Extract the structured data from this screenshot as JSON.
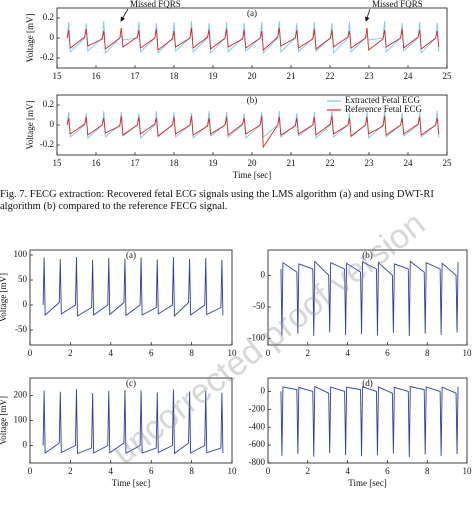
{
  "chart_data": [
    {
      "type": "line",
      "title": "(a)",
      "ylabel": "Voltage [mV]",
      "xlim": [
        15,
        25
      ],
      "ylim": [
        -0.3,
        0.3
      ],
      "xticks": [
        15,
        16,
        17,
        18,
        19,
        20,
        21,
        22,
        23,
        24,
        25
      ],
      "yticks": [
        -0.2,
        0,
        0.2
      ],
      "annotations": [
        "Missed FQRS",
        "Missed FQRS"
      ],
      "x": [
        15.26,
        15.3,
        15.34,
        15.71,
        15.75,
        15.79,
        16.16,
        16.2,
        16.24,
        16.61,
        16.65,
        16.69,
        17.06,
        17.1,
        17.14,
        17.51,
        17.55,
        17.59,
        17.96,
        18.0,
        18.04,
        18.41,
        18.45,
        18.49,
        18.86,
        18.9,
        18.94,
        19.31,
        19.35,
        19.39,
        19.76,
        19.8,
        19.84,
        20.21,
        20.25,
        20.29,
        20.66,
        20.7,
        20.74,
        21.11,
        21.15,
        21.19,
        21.56,
        21.6,
        21.64,
        22.01,
        22.05,
        22.09,
        22.46,
        22.5,
        22.54,
        22.91,
        22.95,
        22.99,
        23.36,
        23.4,
        23.44,
        23.81,
        23.85,
        23.89,
        24.26,
        24.3,
        24.34,
        24.71,
        24.75,
        24.79
      ],
      "series": [
        {
          "color": "#7ec8e3",
          "values": [
            0,
            0.16,
            -0.14,
            0,
            0.15,
            -0.13,
            0,
            0.17,
            -0.15,
            0,
            0.02,
            -0.02,
            0,
            0.16,
            -0.14,
            0,
            0.15,
            -0.15,
            0,
            0.16,
            -0.13,
            0,
            0.17,
            -0.14,
            0,
            0.15,
            -0.15,
            0,
            0.16,
            -0.14,
            0,
            0.15,
            -0.13,
            0,
            0.16,
            -0.15,
            0,
            0.17,
            -0.14,
            0,
            0.15,
            -0.14,
            0,
            0.16,
            -0.13,
            0,
            0.15,
            -0.15,
            0,
            0.16,
            -0.14,
            0,
            0.02,
            -0.02,
            0,
            0.17,
            -0.14,
            0,
            0.15,
            -0.13,
            0,
            0.16,
            -0.15,
            0,
            0.15,
            -0.14
          ]
        },
        {
          "color": "#d62728",
          "values": [
            0,
            0.08,
            -0.1,
            0.01,
            0.09,
            -0.08,
            -0.01,
            0.07,
            -0.11,
            0,
            0.1,
            -0.09,
            0.01,
            0.08,
            -0.1,
            0,
            0.09,
            -0.12,
            -0.01,
            0.07,
            -0.09,
            0,
            0.1,
            -0.1,
            0.01,
            0.08,
            -0.11,
            0,
            0.09,
            -0.09,
            -0.01,
            0.08,
            -0.1,
            0,
            0.07,
            -0.12,
            0.01,
            0.1,
            -0.08,
            0,
            0.08,
            -0.1,
            -0.01,
            0.09,
            -0.11,
            0,
            0.08,
            -0.09,
            0.01,
            0.07,
            -0.1,
            0,
            0.1,
            -0.12,
            -0.01,
            0.08,
            -0.09,
            0,
            0.09,
            -0.1,
            0.01,
            0.08,
            -0.11,
            0,
            0.07,
            -0.09
          ]
        }
      ]
    },
    {
      "type": "line",
      "title": "(b)",
      "ylabel": "Voltage [mV]",
      "xlabel": "Time [sec]",
      "xlim": [
        15,
        25
      ],
      "ylim": [
        -0.3,
        0.3
      ],
      "xticks": [
        15,
        16,
        17,
        18,
        19,
        20,
        21,
        22,
        23,
        24,
        25
      ],
      "yticks": [
        -0.2,
        0,
        0.2
      ],
      "legend": "upper right",
      "x": [
        15.26,
        15.3,
        15.34,
        15.71,
        15.75,
        15.79,
        16.16,
        16.2,
        16.24,
        16.61,
        16.65,
        16.69,
        17.06,
        17.1,
        17.14,
        17.51,
        17.55,
        17.59,
        17.96,
        18.0,
        18.04,
        18.41,
        18.45,
        18.49,
        18.86,
        18.9,
        18.94,
        19.31,
        19.35,
        19.39,
        19.76,
        19.8,
        19.84,
        20.21,
        20.25,
        20.29,
        20.66,
        20.7,
        20.74,
        21.11,
        21.15,
        21.19,
        21.56,
        21.6,
        21.64,
        22.01,
        22.05,
        22.09,
        22.46,
        22.5,
        22.54,
        22.91,
        22.95,
        22.99,
        23.36,
        23.4,
        23.44,
        23.81,
        23.85,
        23.89,
        24.26,
        24.3,
        24.34,
        24.71,
        24.75,
        24.79
      ],
      "series": [
        {
          "name": "Extracted Fetal ECG",
          "color": "#7ec8e3",
          "values": [
            0,
            0.13,
            -0.12,
            0,
            0.12,
            -0.13,
            0,
            0.14,
            -0.12,
            0,
            0.13,
            -0.11,
            0,
            0.12,
            -0.13,
            0,
            0.14,
            -0.12,
            0,
            0.13,
            -0.12,
            0,
            0.12,
            -0.13,
            0,
            0.14,
            -0.11,
            0,
            0.13,
            -0.12,
            0,
            0.12,
            -0.13,
            0,
            0.13,
            -0.12,
            0,
            0.14,
            -0.12,
            0,
            0.12,
            -0.11,
            0,
            0.13,
            -0.13,
            0,
            0.14,
            -0.12,
            0,
            0.12,
            -0.12,
            0,
            0.13,
            -0.13,
            0,
            0.14,
            -0.12,
            0,
            0.12,
            -0.11,
            0,
            0.13,
            -0.12,
            0,
            0.14,
            -0.13
          ]
        },
        {
          "name": "Reference Fetal ECG",
          "color": "#d62728",
          "values": [
            0,
            0.07,
            -0.09,
            0.01,
            0.08,
            -0.1,
            0,
            0.07,
            -0.08,
            -0.01,
            0.09,
            -0.1,
            0,
            0.08,
            -0.09,
            0.01,
            0.07,
            -0.11,
            0,
            0.08,
            -0.09,
            0,
            0.09,
            -0.1,
            -0.01,
            0.07,
            -0.09,
            0,
            0.08,
            -0.1,
            0.01,
            0.07,
            -0.09,
            0,
            0.09,
            -0.22,
            0,
            0.08,
            -0.1,
            -0.01,
            0.07,
            -0.09,
            0,
            0.08,
            -0.1,
            0.01,
            0.09,
            -0.09,
            0,
            0.07,
            -0.11,
            0,
            0.08,
            -0.09,
            -0.01,
            0.09,
            -0.1,
            0,
            0.07,
            -0.09,
            0.01,
            0.08,
            -0.1,
            0,
            0.07,
            -0.09
          ]
        }
      ]
    },
    {
      "type": "line",
      "title": "(a)",
      "ylabel": "Voltage [mV]",
      "xlim": [
        0,
        10
      ],
      "ylim": [
        -80,
        110
      ],
      "xticks": [
        0,
        2,
        4,
        6,
        8,
        10
      ],
      "yticks": [
        -50,
        0,
        50,
        100
      ],
      "x": [
        0.65,
        0.7,
        0.75,
        1.45,
        1.5,
        1.55,
        2.25,
        2.3,
        2.35,
        3.05,
        3.1,
        3.15,
        3.85,
        3.9,
        3.95,
        4.65,
        4.7,
        4.75,
        5.45,
        5.5,
        5.55,
        6.25,
        6.3,
        6.35,
        7.05,
        7.1,
        7.15,
        7.85,
        7.9,
        7.95,
        8.65,
        8.7,
        8.75,
        9.45,
        9.5,
        9.55
      ],
      "series": [
        {
          "color": "#2f3f9e",
          "values": [
            0,
            95,
            -20,
            5,
            92,
            -18,
            0,
            96,
            -22,
            -5,
            90,
            -20,
            0,
            94,
            -19,
            5,
            93,
            -21,
            0,
            95,
            -20,
            -5,
            91,
            -18,
            0,
            96,
            -22,
            5,
            92,
            -20,
            0,
            94,
            -19,
            -5,
            90,
            -21
          ]
        }
      ]
    },
    {
      "type": "line",
      "title": "(b)",
      "xlim": [
        0,
        10
      ],
      "ylim": [
        -110,
        40
      ],
      "xticks": [
        0,
        2,
        4,
        6,
        8,
        10
      ],
      "yticks": [
        -100,
        -50,
        0
      ],
      "x": [
        0.65,
        0.7,
        0.75,
        1.45,
        1.5,
        1.55,
        2.25,
        2.3,
        2.35,
        3.05,
        3.1,
        3.15,
        3.85,
        3.9,
        3.95,
        4.65,
        4.7,
        4.75,
        5.45,
        5.5,
        5.55,
        6.25,
        6.3,
        6.35,
        7.05,
        7.1,
        7.15,
        7.85,
        7.9,
        7.95,
        8.65,
        8.7,
        8.75,
        9.45,
        9.5,
        9.55
      ],
      "series": [
        {
          "color": "#2f3f9e",
          "values": [
            10,
            -95,
            20,
            5,
            -92,
            18,
            10,
            -96,
            22,
            0,
            -90,
            20,
            10,
            -94,
            19,
            5,
            -93,
            21,
            10,
            -95,
            20,
            0,
            -91,
            18,
            10,
            -96,
            22,
            5,
            -92,
            20,
            10,
            -94,
            19,
            0,
            -90,
            21
          ]
        }
      ]
    },
    {
      "type": "line",
      "title": "(c)",
      "ylabel": "Voltage [mV]",
      "xlabel": "Time [sec]",
      "xlim": [
        0,
        10
      ],
      "ylim": [
        -70,
        270
      ],
      "xticks": [
        0,
        2,
        4,
        6,
        8,
        10
      ],
      "yticks": [
        0,
        100,
        200
      ],
      "x": [
        0.65,
        0.7,
        0.75,
        1.45,
        1.5,
        1.55,
        2.25,
        2.3,
        2.35,
        3.05,
        3.1,
        3.15,
        3.85,
        3.9,
        3.95,
        4.65,
        4.7,
        4.75,
        5.45,
        5.5,
        5.55,
        6.25,
        6.3,
        6.35,
        7.05,
        7.1,
        7.15,
        7.85,
        7.9,
        7.95,
        8.65,
        8.7,
        8.75,
        9.45,
        9.5,
        9.55
      ],
      "series": [
        {
          "color": "#2f3f9e",
          "values": [
            0,
            220,
            -30,
            10,
            215,
            -28,
            0,
            225,
            -32,
            -10,
            210,
            -30,
            0,
            218,
            -29,
            10,
            222,
            -31,
            0,
            220,
            -30,
            -10,
            212,
            -28,
            0,
            224,
            -32,
            10,
            216,
            -30,
            0,
            219,
            -29,
            -10,
            211,
            -31
          ]
        }
      ]
    },
    {
      "type": "line",
      "title": "(d)",
      "xlabel": "Time [sec]",
      "xlim": [
        0,
        10
      ],
      "ylim": [
        -800,
        150
      ],
      "xticks": [
        0,
        2,
        4,
        6,
        8,
        10
      ],
      "yticks": [
        -800,
        -600,
        -400,
        -200,
        0
      ],
      "x": [
        0.65,
        0.7,
        0.75,
        1.45,
        1.5,
        1.55,
        2.25,
        2.3,
        2.35,
        3.05,
        3.1,
        3.15,
        3.85,
        3.9,
        3.95,
        4.65,
        4.7,
        4.75,
        5.45,
        5.5,
        5.55,
        6.25,
        6.3,
        6.35,
        7.05,
        7.1,
        7.15,
        7.85,
        7.9,
        7.95,
        8.65,
        8.7,
        8.75,
        9.45,
        9.5,
        9.55
      ],
      "series": [
        {
          "color": "#2f3f9e",
          "values": [
            0,
            -720,
            50,
            20,
            -700,
            45,
            0,
            -730,
            55,
            -20,
            -690,
            50,
            0,
            -710,
            48,
            20,
            -725,
            52,
            0,
            -715,
            50,
            -20,
            -695,
            45,
            0,
            -735,
            55,
            20,
            -705,
            50,
            0,
            -720,
            48,
            -20,
            -700,
            52
          ]
        }
      ]
    }
  ],
  "caption": "Fig. 7. FECG extraction: Recovered fetal ECG signals using the LMS algorithm (a) and using DWT-RI algorithm (b) compared to the reference FECG signal.",
  "watermark": "uncorrected proof version"
}
